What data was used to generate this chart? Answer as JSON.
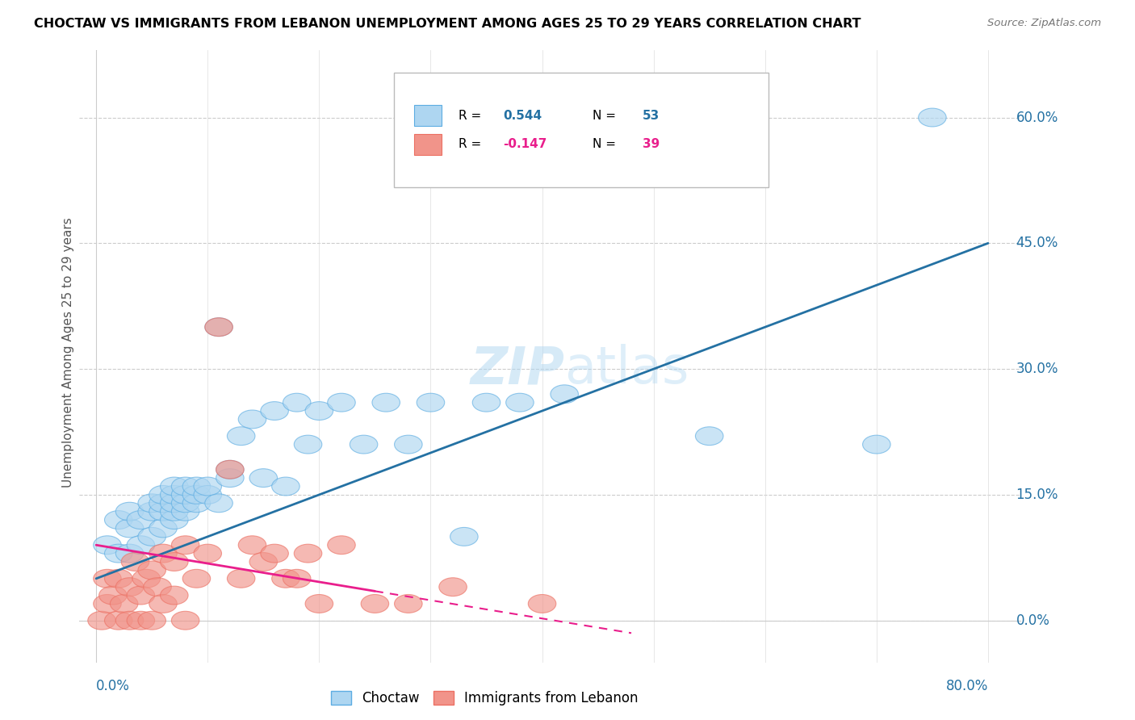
{
  "title": "CHOCTAW VS IMMIGRANTS FROM LEBANON UNEMPLOYMENT AMONG AGES 25 TO 29 YEARS CORRELATION CHART",
  "source": "Source: ZipAtlas.com",
  "ylabel": "Unemployment Among Ages 25 to 29 years",
  "ytick_labels": [
    "0.0%",
    "15.0%",
    "30.0%",
    "45.0%",
    "60.0%"
  ],
  "ytick_values": [
    0.0,
    15.0,
    30.0,
    45.0,
    60.0
  ],
  "xlim": [
    0.0,
    80.0
  ],
  "ylim": [
    0.0,
    65.0
  ],
  "legend_blue_label": "Choctaw",
  "legend_pink_label": "Immigrants from Lebanon",
  "R_blue": 0.544,
  "N_blue": 53,
  "R_pink": -0.147,
  "N_pink": 39,
  "blue_fill": "#AED6F1",
  "pink_fill": "#F1948A",
  "blue_edge": "#5DADE2",
  "pink_edge": "#EC7063",
  "blue_line_color": "#2471A3",
  "pink_line_color": "#E91E8C",
  "watermark_color": "#D6EAF8",
  "choctaw_x": [
    1,
    2,
    2,
    3,
    3,
    3,
    4,
    4,
    5,
    5,
    5,
    6,
    6,
    6,
    6,
    7,
    7,
    7,
    7,
    7,
    8,
    8,
    8,
    8,
    9,
    9,
    9,
    10,
    10,
    11,
    11,
    12,
    12,
    13,
    14,
    15,
    16,
    17,
    18,
    19,
    20,
    22,
    24,
    26,
    28,
    30,
    33,
    35,
    38,
    42,
    55,
    70,
    75
  ],
  "choctaw_y": [
    9,
    8,
    12,
    8,
    11,
    13,
    9,
    12,
    10,
    13,
    14,
    11,
    13,
    14,
    15,
    12,
    13,
    14,
    15,
    16,
    13,
    14,
    15,
    16,
    14,
    15,
    16,
    15,
    16,
    14,
    35,
    17,
    18,
    22,
    24,
    17,
    25,
    16,
    26,
    21,
    25,
    26,
    21,
    26,
    21,
    26,
    10,
    26,
    26,
    27,
    22,
    21,
    60
  ],
  "lebanon_x": [
    0.5,
    1,
    1,
    1.5,
    2,
    2,
    2.5,
    3,
    3,
    3.5,
    4,
    4,
    4.5,
    5,
    5,
    5.5,
    6,
    6,
    7,
    7,
    8,
    8,
    9,
    10,
    11,
    12,
    13,
    14,
    15,
    16,
    17,
    18,
    19,
    20,
    22,
    25,
    28,
    32,
    40
  ],
  "lebanon_y": [
    0,
    2,
    5,
    3,
    0,
    5,
    2,
    0,
    4,
    7,
    0,
    3,
    5,
    0,
    6,
    4,
    2,
    8,
    3,
    7,
    0,
    9,
    5,
    8,
    35,
    18,
    5,
    9,
    7,
    8,
    5,
    5,
    8,
    2,
    9,
    2,
    2,
    4,
    2
  ],
  "blue_line_x": [
    0,
    80
  ],
  "blue_line_y": [
    5,
    45
  ],
  "pink_line_x": [
    0,
    40
  ],
  "pink_line_y": [
    9,
    2
  ]
}
